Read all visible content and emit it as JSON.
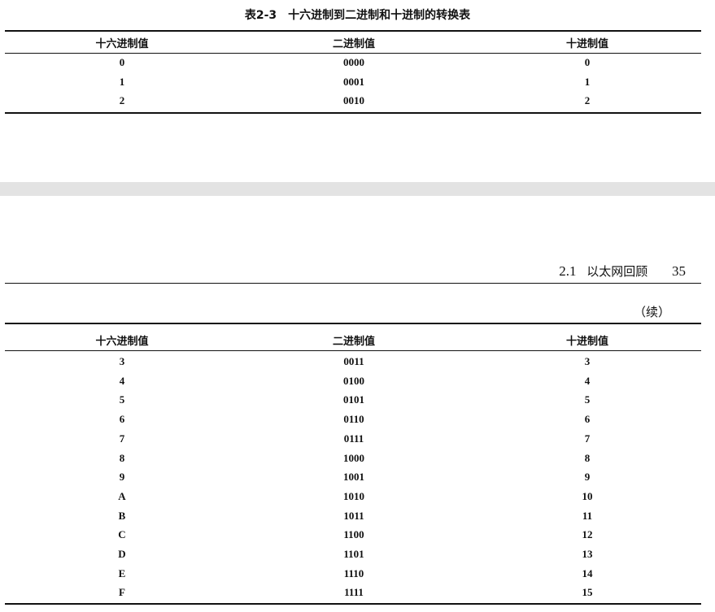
{
  "page1": {
    "title": "表2-3　十六进制到二进制和十进制的转换表",
    "headers": [
      "十六进制值",
      "二进制值",
      "十进制值"
    ],
    "rows": [
      [
        "0",
        "0000",
        "0"
      ],
      [
        "1",
        "0001",
        "1"
      ],
      [
        "2",
        "0010",
        "2"
      ]
    ]
  },
  "page2": {
    "running_head": {
      "section": "2.1",
      "title": "以太网回顾",
      "page": "35"
    },
    "continued": "（续）",
    "headers": [
      "十六进制值",
      "二进制值",
      "十进制值"
    ],
    "rows": [
      [
        "3",
        "0011",
        "3"
      ],
      [
        "4",
        "0100",
        "4"
      ],
      [
        "5",
        "0101",
        "5"
      ],
      [
        "6",
        "0110",
        "6"
      ],
      [
        "7",
        "0111",
        "7"
      ],
      [
        "8",
        "1000",
        "8"
      ],
      [
        "9",
        "1001",
        "9"
      ],
      [
        "A",
        "1010",
        "10"
      ],
      [
        "B",
        "1011",
        "11"
      ],
      [
        "C",
        "1100",
        "12"
      ],
      [
        "D",
        "1101",
        "13"
      ],
      [
        "E",
        "1110",
        "14"
      ],
      [
        "F",
        "1111",
        "15"
      ]
    ]
  }
}
